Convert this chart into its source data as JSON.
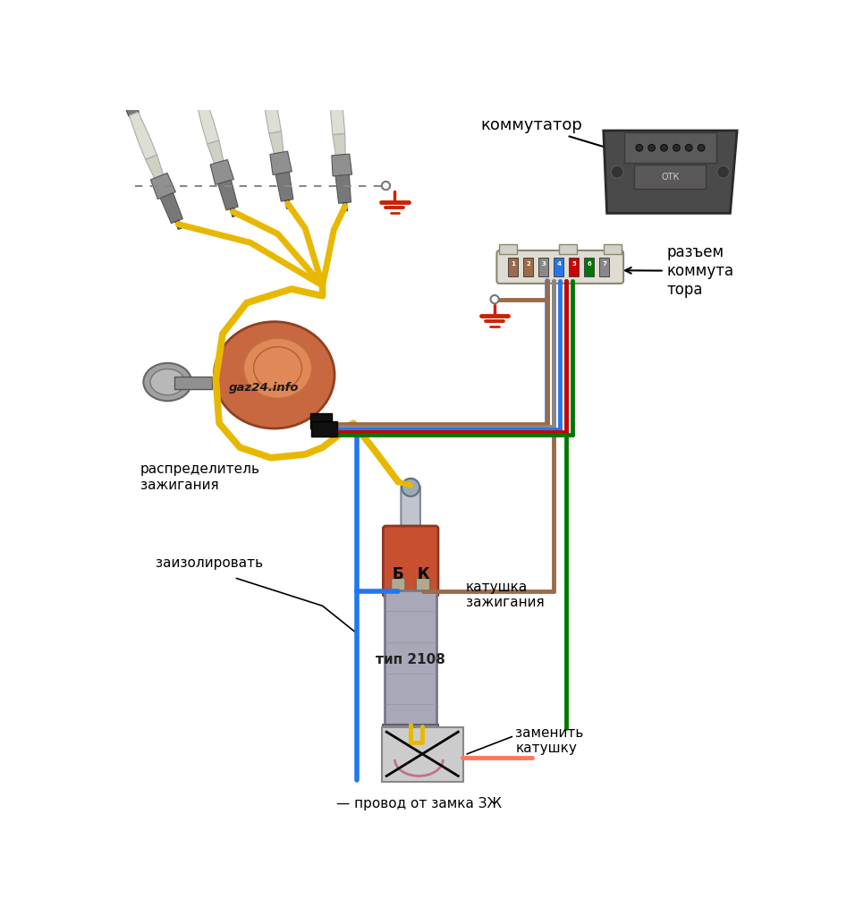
{
  "bg_color": "#ffffff",
  "fig_width": 9.56,
  "fig_height": 10.24,
  "dpi": 100,
  "labels": {
    "kommutator": "коммутатор",
    "razjem": "разъем\nкоммута\nтора",
    "raspredelitel": "распределитель\nзажигания",
    "zaizolirovat": "заизолировать",
    "tip2108": "тип 2108",
    "katushka": "катушка\nзажигания",
    "zamenit_katushku": "заменить\nкатушку",
    "provod": "— провод от замка ЗЖ",
    "B_label": "Б",
    "K_label": "К",
    "gaz24": "gaz24.info"
  },
  "colors": {
    "yellow": "#E8B800",
    "red": "#CC0000",
    "green": "#007700",
    "blue": "#2277EE",
    "brown": "#9B6B4A",
    "gray": "#888888",
    "black": "#111111",
    "white": "#ffffff",
    "dark_red": "#BB2200",
    "light_orange": "#FF8855",
    "plug_ceramic": "#D8D8CC",
    "plug_metal": "#909090",
    "dist_orange": "#D07040",
    "dist_light": "#E89060",
    "coil_red": "#C85030",
    "coil_gray": "#9898A8",
    "coil_silver": "#B0B0C0",
    "old_coil_bg": "#C8C8C8",
    "old_coil_arc": "#C06080",
    "kommutator_dark": "#484848",
    "kommutator_mid": "#686868",
    "connector_bg": "#E8E4DC"
  },
  "wire_lw": 3.5
}
